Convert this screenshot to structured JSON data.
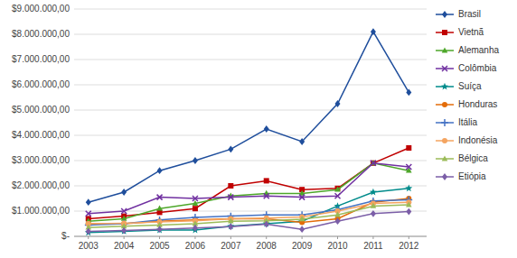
{
  "chart_data": {
    "type": "line",
    "x": [
      2003,
      2004,
      2005,
      2006,
      2007,
      2008,
      2009,
      2010,
      2011,
      2012
    ],
    "xlim": [
      2002.6,
      2012.5
    ],
    "xticks": [
      2003,
      2004,
      2005,
      2006,
      2007,
      2008,
      2009,
      2010,
      2011,
      2012
    ],
    "ylim": [
      0,
      9000000
    ],
    "yticks": [
      {
        "value": 0,
        "label": "$-"
      },
      {
        "value": 1000000,
        "label": "$1.000.000,00"
      },
      {
        "value": 2000000,
        "label": "$2.000.000,00"
      },
      {
        "value": 3000000,
        "label": "$3.000.000,00"
      },
      {
        "value": 4000000,
        "label": "$4.000.000,00"
      },
      {
        "value": 5000000,
        "label": "$5.000.000,00"
      },
      {
        "value": 6000000,
        "label": "$6.000.000,00"
      },
      {
        "value": 7000000,
        "label": "$7.000.000,00"
      },
      {
        "value": 8000000,
        "label": "$8.000.000,00"
      },
      {
        "value": 9000000,
        "label": "$9.000.000,00"
      }
    ],
    "grid": true,
    "legend": "right",
    "series": [
      {
        "name": "Brasil",
        "color": "#1f4e9c",
        "marker": "diamond",
        "values": [
          1350000,
          1750000,
          2600000,
          3000000,
          3450000,
          4250000,
          3750000,
          5250000,
          8100000,
          5700000
        ]
      },
      {
        "name": "Vietnã",
        "color": "#c00000",
        "marker": "square",
        "values": [
          700000,
          800000,
          950000,
          1100000,
          2000000,
          2200000,
          1850000,
          1900000,
          2900000,
          3500000
        ]
      },
      {
        "name": "Alemanha",
        "color": "#4ea72a",
        "marker": "triangle",
        "values": [
          600000,
          700000,
          1100000,
          1300000,
          1600000,
          1700000,
          1700000,
          1850000,
          2900000,
          2600000
        ]
      },
      {
        "name": "Colômbia",
        "color": "#7030a0",
        "marker": "x",
        "values": [
          900000,
          1000000,
          1550000,
          1500000,
          1550000,
          1600000,
          1550000,
          1600000,
          2900000,
          2750000
        ]
      },
      {
        "name": "Suíça",
        "color": "#008b8b",
        "marker": "star",
        "values": [
          150000,
          200000,
          250000,
          250000,
          400000,
          500000,
          600000,
          1200000,
          1750000,
          1900000
        ]
      },
      {
        "name": "Honduras",
        "color": "#e36c09",
        "marker": "circle",
        "values": [
          500000,
          500000,
          600000,
          650000,
          700000,
          700000,
          550000,
          700000,
          1350000,
          1500000
        ]
      },
      {
        "name": "Itália",
        "color": "#4472c4",
        "marker": "plus",
        "values": [
          450000,
          500000,
          650000,
          750000,
          800000,
          850000,
          850000,
          1050000,
          1400000,
          1450000
        ]
      },
      {
        "name": "Indonésia",
        "color": "#f4a460",
        "marker": "circle",
        "values": [
          500000,
          520000,
          570000,
          620000,
          700000,
          720000,
          770000,
          1000000,
          1300000,
          1350000
        ]
      },
      {
        "name": "Bélgica",
        "color": "#9bbb59",
        "marker": "triangle",
        "values": [
          350000,
          400000,
          450000,
          500000,
          600000,
          620000,
          680000,
          850000,
          1200000,
          1250000
        ]
      },
      {
        "name": "Etiópia",
        "color": "#7b5ea7",
        "marker": "diamond",
        "values": [
          200000,
          230000,
          280000,
          330000,
          380000,
          480000,
          280000,
          600000,
          900000,
          980000
        ]
      }
    ]
  }
}
